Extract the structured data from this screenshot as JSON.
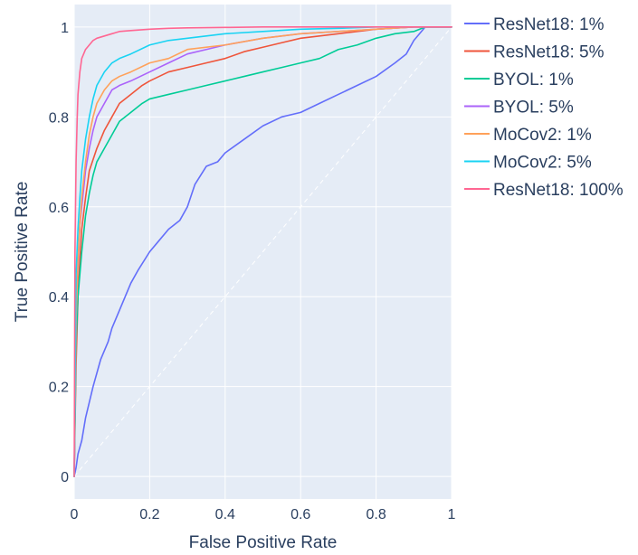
{
  "chart_data": {
    "type": "line",
    "title": "",
    "xlabel": "False Positive Rate",
    "ylabel": "True Positive Rate",
    "xlim": [
      0,
      1
    ],
    "ylim": [
      -0.05,
      1.05
    ],
    "x_ticks": [
      0,
      0.2,
      0.4,
      0.6,
      0.8,
      1
    ],
    "x_tick_labels": [
      "0",
      "0.2",
      "0.4",
      "0.6",
      "0.8",
      "1"
    ],
    "y_ticks": [
      0,
      0.2,
      0.4,
      0.6,
      0.8,
      1
    ],
    "y_tick_labels": [
      "0",
      "0.2",
      "0.4",
      "0.6",
      "0.8",
      "1"
    ],
    "grid": true,
    "legend_position": "right",
    "plot_background": "#e5ecf6",
    "diagonal_reference": {
      "x": [
        0,
        1
      ],
      "y": [
        0,
        1
      ],
      "style": "dashed",
      "color": "#ffffff"
    },
    "series": [
      {
        "name": "ResNet18: 1%",
        "color": "#636efa",
        "x": [
          0,
          0.005,
          0.01,
          0.02,
          0.03,
          0.05,
          0.07,
          0.09,
          0.1,
          0.12,
          0.15,
          0.17,
          0.2,
          0.22,
          0.25,
          0.28,
          0.3,
          0.32,
          0.35,
          0.38,
          0.4,
          0.45,
          0.5,
          0.55,
          0.6,
          0.65,
          0.7,
          0.75,
          0.8,
          0.85,
          0.88,
          0.9,
          0.92,
          0.93,
          1.0
        ],
        "y": [
          0,
          0.02,
          0.05,
          0.08,
          0.13,
          0.2,
          0.26,
          0.3,
          0.33,
          0.37,
          0.43,
          0.46,
          0.5,
          0.52,
          0.55,
          0.57,
          0.6,
          0.65,
          0.69,
          0.7,
          0.72,
          0.75,
          0.78,
          0.8,
          0.81,
          0.83,
          0.85,
          0.87,
          0.89,
          0.92,
          0.94,
          0.97,
          0.99,
          1.0,
          1.0
        ]
      },
      {
        "name": "ResNet18: 5%",
        "color": "#ef553b",
        "x": [
          0,
          0.005,
          0.01,
          0.015,
          0.02,
          0.03,
          0.04,
          0.06,
          0.08,
          0.1,
          0.12,
          0.15,
          0.18,
          0.2,
          0.25,
          0.3,
          0.35,
          0.4,
          0.45,
          0.5,
          0.55,
          0.6,
          0.65,
          0.7,
          0.75,
          0.8,
          0.9,
          1.0
        ],
        "y": [
          0,
          0.25,
          0.4,
          0.48,
          0.55,
          0.62,
          0.68,
          0.73,
          0.77,
          0.8,
          0.83,
          0.85,
          0.87,
          0.88,
          0.9,
          0.91,
          0.92,
          0.93,
          0.945,
          0.955,
          0.965,
          0.975,
          0.98,
          0.985,
          0.99,
          0.995,
          1.0,
          1.0
        ]
      },
      {
        "name": "BYOL: 1%",
        "color": "#00cc96",
        "x": [
          0,
          0.005,
          0.01,
          0.02,
          0.03,
          0.04,
          0.05,
          0.06,
          0.08,
          0.1,
          0.12,
          0.15,
          0.18,
          0.2,
          0.25,
          0.3,
          0.35,
          0.4,
          0.45,
          0.5,
          0.55,
          0.6,
          0.65,
          0.7,
          0.75,
          0.8,
          0.85,
          0.9,
          0.93,
          1.0
        ],
        "y": [
          0,
          0.3,
          0.4,
          0.5,
          0.58,
          0.63,
          0.67,
          0.7,
          0.73,
          0.76,
          0.79,
          0.81,
          0.83,
          0.84,
          0.85,
          0.86,
          0.87,
          0.88,
          0.89,
          0.9,
          0.91,
          0.92,
          0.93,
          0.95,
          0.96,
          0.975,
          0.985,
          0.99,
          1.0,
          1.0
        ]
      },
      {
        "name": "BYOL: 5%",
        "color": "#ab63fa",
        "x": [
          0,
          0.005,
          0.01,
          0.015,
          0.02,
          0.03,
          0.04,
          0.05,
          0.06,
          0.08,
          0.1,
          0.12,
          0.15,
          0.2,
          0.25,
          0.3,
          0.35,
          0.4,
          0.5,
          0.6,
          0.7,
          0.8,
          0.9,
          1.0
        ],
        "y": [
          0,
          0.35,
          0.47,
          0.56,
          0.6,
          0.68,
          0.73,
          0.77,
          0.8,
          0.83,
          0.86,
          0.87,
          0.88,
          0.9,
          0.92,
          0.94,
          0.95,
          0.96,
          0.975,
          0.985,
          0.99,
          0.995,
          1.0,
          1.0
        ]
      },
      {
        "name": "MoCov2: 1%",
        "color": "#ffa15a",
        "x": [
          0,
          0.005,
          0.01,
          0.015,
          0.02,
          0.03,
          0.04,
          0.05,
          0.06,
          0.08,
          0.1,
          0.12,
          0.15,
          0.2,
          0.25,
          0.3,
          0.4,
          0.5,
          0.6,
          0.7,
          0.8,
          0.9,
          1.0
        ],
        "y": [
          0,
          0.35,
          0.48,
          0.56,
          0.62,
          0.7,
          0.76,
          0.8,
          0.83,
          0.86,
          0.88,
          0.89,
          0.9,
          0.92,
          0.93,
          0.95,
          0.96,
          0.975,
          0.985,
          0.99,
          0.995,
          1.0,
          1.0
        ]
      },
      {
        "name": "MoCov2: 5%",
        "color": "#19d3f3",
        "x": [
          0,
          0.005,
          0.01,
          0.015,
          0.02,
          0.03,
          0.04,
          0.05,
          0.06,
          0.08,
          0.1,
          0.12,
          0.15,
          0.2,
          0.25,
          0.3,
          0.35,
          0.4,
          0.5,
          0.6,
          0.7,
          0.8,
          0.9,
          1.0
        ],
        "y": [
          0,
          0.45,
          0.55,
          0.62,
          0.68,
          0.75,
          0.8,
          0.84,
          0.87,
          0.9,
          0.92,
          0.93,
          0.94,
          0.96,
          0.97,
          0.975,
          0.98,
          0.985,
          0.99,
          0.995,
          0.997,
          1.0,
          1.0,
          1.0
        ]
      },
      {
        "name": "ResNet18: 100%",
        "color": "#ff6692",
        "x": [
          0,
          0.002,
          0.005,
          0.008,
          0.01,
          0.015,
          0.02,
          0.03,
          0.04,
          0.05,
          0.06,
          0.08,
          0.1,
          0.12,
          0.15,
          0.2,
          0.25,
          0.3,
          0.4,
          0.5,
          0.6,
          0.8,
          1.0
        ],
        "y": [
          0,
          0.5,
          0.7,
          0.8,
          0.85,
          0.9,
          0.93,
          0.95,
          0.96,
          0.97,
          0.975,
          0.98,
          0.985,
          0.99,
          0.992,
          0.995,
          0.997,
          0.998,
          0.999,
          1.0,
          1.0,
          1.0,
          1.0
        ]
      }
    ]
  }
}
